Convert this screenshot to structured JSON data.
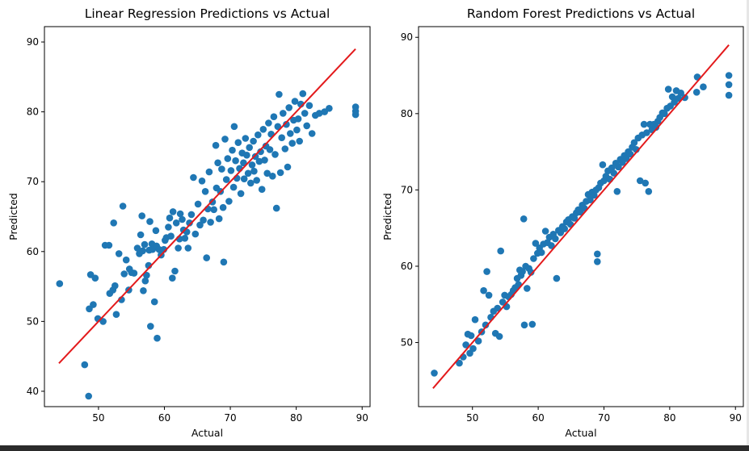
{
  "chart_data": [
    {
      "type": "scatter",
      "title": "Linear Regression Predictions vs Actual",
      "xlabel": "Actual",
      "ylabel": "Predicted",
      "xlim": [
        41.8,
        91.2
      ],
      "ylim": [
        37.8,
        92.2
      ],
      "xticks": [
        50,
        60,
        70,
        80,
        90
      ],
      "yticks": [
        40,
        50,
        60,
        70,
        80,
        90
      ],
      "grid": false,
      "point_color": "#1f77b4",
      "line_color": "#e31a1c",
      "reference_line": {
        "x": [
          44,
          89
        ],
        "y": [
          44,
          89
        ]
      },
      "points": [
        [
          44.1,
          55.4
        ],
        [
          47.9,
          43.8
        ],
        [
          48.5,
          39.3
        ],
        [
          48.6,
          51.8
        ],
        [
          48.8,
          56.7
        ],
        [
          49.2,
          52.4
        ],
        [
          49.5,
          56.2
        ],
        [
          49.9,
          50.4
        ],
        [
          50.7,
          50.0
        ],
        [
          51.0,
          60.9
        ],
        [
          51.6,
          60.9
        ],
        [
          51.7,
          54.0
        ],
        [
          52.2,
          54.5
        ],
        [
          52.3,
          64.1
        ],
        [
          52.5,
          55.1
        ],
        [
          52.7,
          51.0
        ],
        [
          53.1,
          59.7
        ],
        [
          53.5,
          53.1
        ],
        [
          53.7,
          66.5
        ],
        [
          53.9,
          56.8
        ],
        [
          54.2,
          58.8
        ],
        [
          54.6,
          54.5
        ],
        [
          54.7,
          57.5
        ],
        [
          55.0,
          57.0
        ],
        [
          55.4,
          56.9
        ],
        [
          55.9,
          60.5
        ],
        [
          56.2,
          59.7
        ],
        [
          56.4,
          62.4
        ],
        [
          56.6,
          65.1
        ],
        [
          56.7,
          60.1
        ],
        [
          56.8,
          54.4
        ],
        [
          57.0,
          61.0
        ],
        [
          57.1,
          55.8
        ],
        [
          57.3,
          56.6
        ],
        [
          57.6,
          58.0
        ],
        [
          57.7,
          60.2
        ],
        [
          57.8,
          64.3
        ],
        [
          57.9,
          49.3
        ],
        [
          58.1,
          61.1
        ],
        [
          58.2,
          60.3
        ],
        [
          58.5,
          52.8
        ],
        [
          58.7,
          63.0
        ],
        [
          58.8,
          60.8
        ],
        [
          58.9,
          47.6
        ],
        [
          59.2,
          60.3
        ],
        [
          59.5,
          59.5
        ],
        [
          59.9,
          60.3
        ],
        [
          60.1,
          61.6
        ],
        [
          60.3,
          62.0
        ],
        [
          60.6,
          63.5
        ],
        [
          60.8,
          64.8
        ],
        [
          61.0,
          62.2
        ],
        [
          61.2,
          56.2
        ],
        [
          61.3,
          65.7
        ],
        [
          61.6,
          57.2
        ],
        [
          61.8,
          64.1
        ],
        [
          62.1,
          60.5
        ],
        [
          62.3,
          61.8
        ],
        [
          62.4,
          65.4
        ],
        [
          62.7,
          64.6
        ],
        [
          62.9,
          63.1
        ],
        [
          63.1,
          61.9
        ],
        [
          63.4,
          62.8
        ],
        [
          63.6,
          60.5
        ],
        [
          63.8,
          64.1
        ],
        [
          64.1,
          65.3
        ],
        [
          64.4,
          70.6
        ],
        [
          64.7,
          62.5
        ],
        [
          65.1,
          66.8
        ],
        [
          65.4,
          63.8
        ],
        [
          65.7,
          70.1
        ],
        [
          65.9,
          64.5
        ],
        [
          66.2,
          68.6
        ],
        [
          66.4,
          59.1
        ],
        [
          66.6,
          66.1
        ],
        [
          66.8,
          71.4
        ],
        [
          67.0,
          64.2
        ],
        [
          67.3,
          67.1
        ],
        [
          67.5,
          66.0
        ],
        [
          67.8,
          75.2
        ],
        [
          67.9,
          69.1
        ],
        [
          68.1,
          72.7
        ],
        [
          68.3,
          64.7
        ],
        [
          68.5,
          68.6
        ],
        [
          68.7,
          71.8
        ],
        [
          68.9,
          66.3
        ],
        [
          69.0,
          58.5
        ],
        [
          69.2,
          76.1
        ],
        [
          69.4,
          70.3
        ],
        [
          69.6,
          73.3
        ],
        [
          69.8,
          67.2
        ],
        [
          70.1,
          71.6
        ],
        [
          70.3,
          74.5
        ],
        [
          70.5,
          69.2
        ],
        [
          70.6,
          77.9
        ],
        [
          70.8,
          73.0
        ],
        [
          71.0,
          70.5
        ],
        [
          71.2,
          75.6
        ],
        [
          71.4,
          71.9
        ],
        [
          71.6,
          68.3
        ],
        [
          71.8,
          74.1
        ],
        [
          72.0,
          72.7
        ],
        [
          72.1,
          70.4
        ],
        [
          72.3,
          76.2
        ],
        [
          72.5,
          73.8
        ],
        [
          72.7,
          71.2
        ],
        [
          72.9,
          74.9
        ],
        [
          73.1,
          69.8
        ],
        [
          73.3,
          72.4
        ],
        [
          73.5,
          75.8
        ],
        [
          73.6,
          71.5
        ],
        [
          73.8,
          73.6
        ],
        [
          74.0,
          70.2
        ],
        [
          74.2,
          76.7
        ],
        [
          74.4,
          72.9
        ],
        [
          74.6,
          74.3
        ],
        [
          74.8,
          68.9
        ],
        [
          75.0,
          77.5
        ],
        [
          75.2,
          73.1
        ],
        [
          75.4,
          75.1
        ],
        [
          75.6,
          71.2
        ],
        [
          75.8,
          78.4
        ],
        [
          76.0,
          74.6
        ],
        [
          76.2,
          76.8
        ],
        [
          76.4,
          70.8
        ],
        [
          76.6,
          79.3
        ],
        [
          76.8,
          73.9
        ],
        [
          77.0,
          66.2
        ],
        [
          77.2,
          77.9
        ],
        [
          77.4,
          82.5
        ],
        [
          77.6,
          71.3
        ],
        [
          77.8,
          76.3
        ],
        [
          78.0,
          79.8
        ],
        [
          78.3,
          74.7
        ],
        [
          78.5,
          78.2
        ],
        [
          78.7,
          72.1
        ],
        [
          78.9,
          80.6
        ],
        [
          79.1,
          76.9
        ],
        [
          79.4,
          75.5
        ],
        [
          79.6,
          78.8
        ],
        [
          79.8,
          81.5
        ],
        [
          80.1,
          77.4
        ],
        [
          80.3,
          79.0
        ],
        [
          80.5,
          75.8
        ],
        [
          80.7,
          81.1
        ],
        [
          81.0,
          82.6
        ],
        [
          81.3,
          79.8
        ],
        [
          81.6,
          78.0
        ],
        [
          82.0,
          80.9
        ],
        [
          82.4,
          76.9
        ],
        [
          82.9,
          79.5
        ],
        [
          83.5,
          79.8
        ],
        [
          84.3,
          80.0
        ],
        [
          85.0,
          80.5
        ],
        [
          89.0,
          79.6
        ],
        [
          89.0,
          80.1
        ],
        [
          89.0,
          80.7
        ]
      ]
    },
    {
      "type": "scatter",
      "title": "Random Forest Predictions vs Actual",
      "xlabel": "Actual",
      "ylabel": "Predicted",
      "xlim": [
        41.8,
        91.2
      ],
      "ylim": [
        41.6,
        91.4
      ],
      "xticks": [
        50,
        60,
        70,
        80,
        90
      ],
      "yticks": [
        50,
        60,
        70,
        80,
        90
      ],
      "grid": false,
      "point_color": "#1f77b4",
      "line_color": "#e31a1c",
      "reference_line": {
        "x": [
          44,
          89
        ],
        "y": [
          44,
          89
        ]
      },
      "points": [
        [
          44.2,
          46.0
        ],
        [
          48.0,
          47.3
        ],
        [
          48.6,
          48.1
        ],
        [
          49.0,
          49.7
        ],
        [
          49.3,
          51.1
        ],
        [
          49.6,
          48.6
        ],
        [
          49.8,
          50.9
        ],
        [
          50.1,
          49.2
        ],
        [
          50.4,
          53.0
        ],
        [
          50.9,
          50.2
        ],
        [
          51.4,
          51.4
        ],
        [
          51.7,
          56.8
        ],
        [
          52.0,
          52.3
        ],
        [
          52.2,
          59.3
        ],
        [
          52.5,
          56.2
        ],
        [
          52.8,
          53.3
        ],
        [
          53.2,
          54.1
        ],
        [
          53.5,
          51.2
        ],
        [
          53.8,
          54.5
        ],
        [
          54.1,
          50.8
        ],
        [
          54.3,
          62.0
        ],
        [
          54.6,
          55.3
        ],
        [
          54.9,
          56.2
        ],
        [
          55.2,
          54.7
        ],
        [
          55.5,
          56.0
        ],
        [
          55.9,
          56.3
        ],
        [
          56.2,
          56.8
        ],
        [
          56.5,
          57.2
        ],
        [
          56.8,
          58.4
        ],
        [
          57.0,
          57.6
        ],
        [
          57.2,
          59.5
        ],
        [
          57.4,
          58.8
        ],
        [
          57.6,
          59.3
        ],
        [
          57.8,
          66.2
        ],
        [
          57.9,
          52.3
        ],
        [
          58.1,
          60.0
        ],
        [
          58.3,
          57.1
        ],
        [
          58.6,
          59.7
        ],
        [
          58.9,
          59.2
        ],
        [
          59.1,
          52.4
        ],
        [
          59.3,
          61.0
        ],
        [
          59.6,
          63.0
        ],
        [
          59.9,
          61.7
        ],
        [
          60.2,
          62.4
        ],
        [
          60.5,
          61.8
        ],
        [
          60.8,
          62.9
        ],
        [
          61.1,
          64.6
        ],
        [
          61.4,
          63.1
        ],
        [
          61.7,
          63.8
        ],
        [
          62.0,
          62.7
        ],
        [
          62.3,
          64.2
        ],
        [
          62.6,
          63.6
        ],
        [
          62.8,
          58.4
        ],
        [
          63.1,
          64.7
        ],
        [
          63.4,
          64.4
        ],
        [
          63.7,
          65.2
        ],
        [
          64.0,
          64.9
        ],
        [
          64.3,
          65.8
        ],
        [
          64.6,
          66.1
        ],
        [
          64.9,
          65.5
        ],
        [
          65.2,
          66.5
        ],
        [
          65.5,
          66.3
        ],
        [
          65.8,
          67.0
        ],
        [
          66.1,
          67.4
        ],
        [
          66.4,
          67.1
        ],
        [
          66.7,
          68.0
        ],
        [
          67.0,
          67.6
        ],
        [
          67.3,
          68.5
        ],
        [
          67.6,
          69.4
        ],
        [
          67.9,
          68.7
        ],
        [
          68.2,
          69.7
        ],
        [
          68.5,
          69.3
        ],
        [
          68.8,
          70.0
        ],
        [
          69.0,
          61.6
        ],
        [
          69.0,
          60.6
        ],
        [
          69.2,
          70.3
        ],
        [
          69.5,
          70.9
        ],
        [
          69.8,
          73.3
        ],
        [
          70.0,
          71.2
        ],
        [
          70.3,
          71.8
        ],
        [
          70.6,
          72.5
        ],
        [
          70.9,
          71.4
        ],
        [
          71.2,
          72.9
        ],
        [
          71.5,
          72.2
        ],
        [
          71.8,
          73.5
        ],
        [
          72.0,
          69.8
        ],
        [
          72.2,
          73.0
        ],
        [
          72.5,
          74.0
        ],
        [
          72.8,
          73.6
        ],
        [
          73.1,
          74.5
        ],
        [
          73.4,
          74.1
        ],
        [
          73.7,
          75.0
        ],
        [
          74.0,
          74.7
        ],
        [
          74.3,
          75.6
        ],
        [
          74.6,
          76.2
        ],
        [
          74.9,
          75.3
        ],
        [
          75.2,
          76.8
        ],
        [
          75.5,
          71.2
        ],
        [
          75.8,
          77.2
        ],
        [
          76.1,
          78.6
        ],
        [
          76.3,
          70.9
        ],
        [
          76.5,
          77.5
        ],
        [
          76.8,
          69.8
        ],
        [
          77.0,
          78.6
        ],
        [
          77.3,
          77.9
        ],
        [
          77.6,
          78.6
        ],
        [
          77.9,
          78.2
        ],
        [
          78.2,
          79.0
        ],
        [
          78.5,
          79.5
        ],
        [
          78.9,
          80.1
        ],
        [
          79.2,
          80.0
        ],
        [
          79.6,
          80.7
        ],
        [
          79.8,
          83.2
        ],
        [
          80.1,
          81.0
        ],
        [
          80.4,
          82.2
        ],
        [
          80.7,
          81.5
        ],
        [
          81.0,
          83.0
        ],
        [
          81.3,
          82.0
        ],
        [
          81.7,
          82.7
        ],
        [
          82.3,
          82.1
        ],
        [
          84.2,
          84.8
        ],
        [
          84.1,
          82.8
        ],
        [
          85.1,
          83.5
        ],
        [
          89.0,
          85.0
        ],
        [
          89.0,
          83.8
        ],
        [
          89.0,
          82.4
        ]
      ]
    }
  ]
}
